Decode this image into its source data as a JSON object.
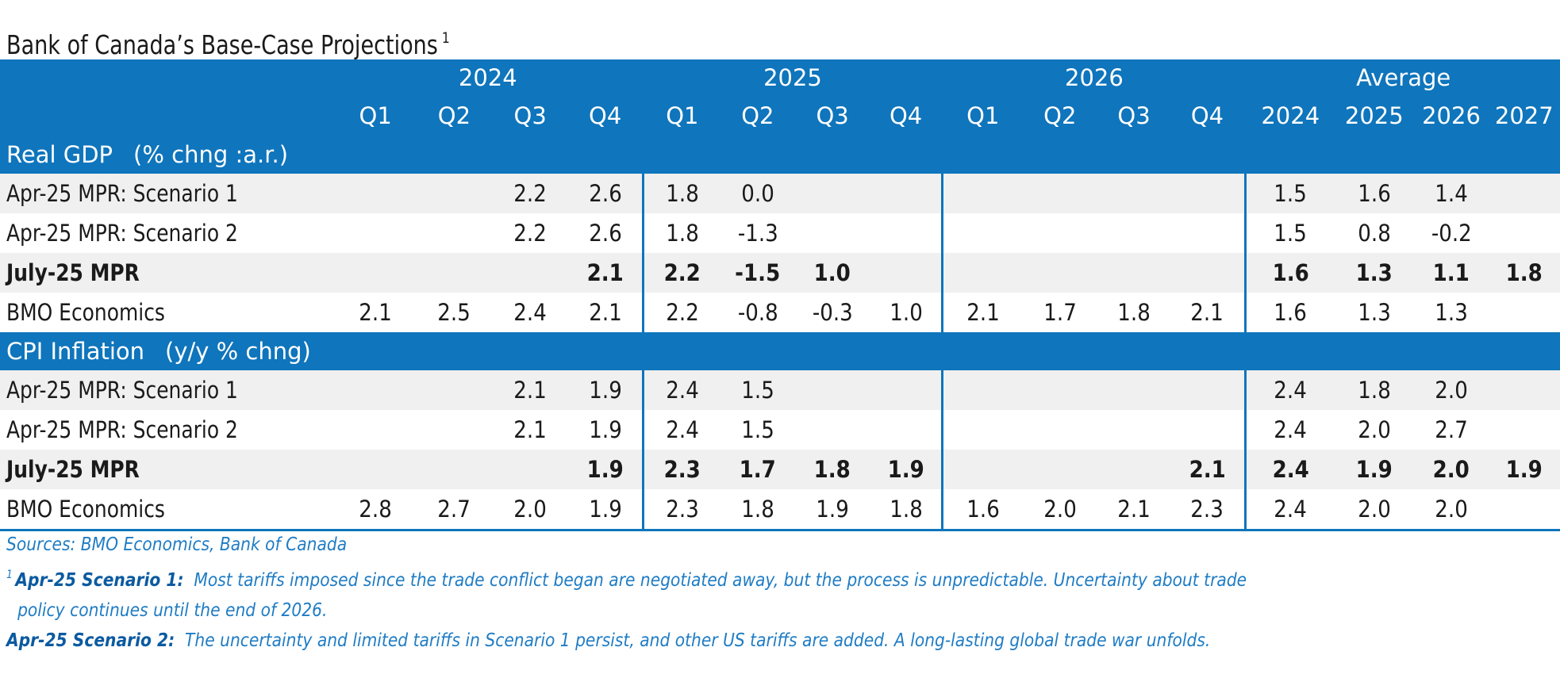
{
  "title": "Bank of Canada’s Base-Case Projections",
  "title_note": "1",
  "header": {
    "years": [
      "2024",
      "2025",
      "2026",
      "Average"
    ],
    "quarters": [
      "Q1",
      "Q2",
      "Q3",
      "Q4",
      "Q1",
      "Q2",
      "Q3",
      "Q4",
      "Q1",
      "Q2",
      "Q3",
      "Q4"
    ],
    "average_years": [
      "2024",
      "2025",
      "2026",
      "2027"
    ]
  },
  "sections": [
    {
      "label": "Real GDP",
      "unit": "(% chng :a.r.)",
      "rows": [
        {
          "label": "Apr-25 MPR: Scenario 1",
          "bold": false,
          "values": [
            "",
            "",
            "2.2",
            "2.6",
            "1.8",
            "0.0",
            "",
            "",
            "",
            "",
            "",
            "",
            "1.5",
            "1.6",
            "1.4",
            ""
          ]
        },
        {
          "label": "Apr-25 MPR: Scenario 2",
          "bold": false,
          "values": [
            "",
            "",
            "2.2",
            "2.6",
            "1.8",
            "-1.3",
            "",
            "",
            "",
            "",
            "",
            "",
            "1.5",
            "0.8",
            "-0.2",
            ""
          ]
        },
        {
          "label": "July-25 MPR",
          "bold": true,
          "values": [
            "",
            "",
            "",
            "2.1",
            "2.2",
            "-1.5",
            "1.0",
            "",
            "",
            "",
            "",
            "",
            "1.6",
            "1.3",
            "1.1",
            "1.8"
          ]
        },
        {
          "label": "BMO Economics",
          "bold": false,
          "values": [
            "2.1",
            "2.5",
            "2.4",
            "2.1",
            "2.2",
            "-0.8",
            "-0.3",
            "1.0",
            "2.1",
            "1.7",
            "1.8",
            "2.1",
            "1.6",
            "1.3",
            "1.3",
            ""
          ]
        }
      ]
    },
    {
      "label": "CPI Inflation",
      "unit": "(y/y % chng)",
      "rows": [
        {
          "label": "Apr-25 MPR: Scenario 1",
          "bold": false,
          "values": [
            "",
            "",
            "2.1",
            "1.9",
            "2.4",
            "1.5",
            "",
            "",
            "",
            "",
            "",
            "",
            "2.4",
            "1.8",
            "2.0",
            ""
          ]
        },
        {
          "label": "Apr-25 MPR: Scenario 2",
          "bold": false,
          "values": [
            "",
            "",
            "2.1",
            "1.9",
            "2.4",
            "1.5",
            "",
            "",
            "",
            "",
            "",
            "",
            "2.4",
            "2.0",
            "2.7",
            ""
          ]
        },
        {
          "label": "July-25 MPR",
          "bold": true,
          "values": [
            "",
            "",
            "",
            "1.9",
            "2.3",
            "1.7",
            "1.8",
            "1.9",
            "",
            "",
            "",
            "2.1",
            "2.4",
            "1.9",
            "2.0",
            "1.9"
          ]
        },
        {
          "label": "BMO Economics",
          "bold": false,
          "values": [
            "2.8",
            "2.7",
            "2.0",
            "1.9",
            "2.3",
            "1.8",
            "1.9",
            "1.8",
            "1.6",
            "2.0",
            "2.1",
            "2.3",
            "2.4",
            "2.0",
            "2.0",
            ""
          ]
        }
      ]
    }
  ],
  "notes": {
    "sources": "Sources: BMO Economics, Bank of Canada",
    "footnote_mark": "1",
    "scenario1_label": "Apr-25 Scenario 1:",
    "scenario1_text": "Most tariffs imposed since the trade conflict began are negotiated away, but the process is unpredictable. Uncertainty about trade",
    "scenario1_text_cont": "policy continues until the end of 2026.",
    "scenario2_label": "Apr-25 Scenario 2:",
    "scenario2_text": "The uncertainty and limited tariffs in Scenario 1 persist, and other US tariffs are added. A long-lasting global trade war unfolds."
  },
  "colors": {
    "header_bg": "#0f75bc",
    "row_shade": "#f0f0f0",
    "note_text": "#1f7cc4"
  }
}
